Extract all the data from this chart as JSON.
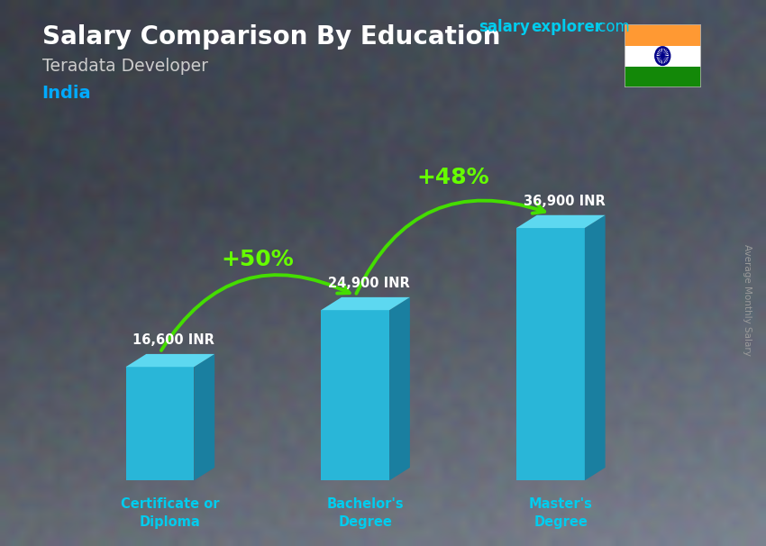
{
  "title_salary": "Salary Comparison By Education",
  "subtitle_job": "Teradata Developer",
  "subtitle_country": "India",
  "categories": [
    "Certificate or\nDiploma",
    "Bachelor's\nDegree",
    "Master's\nDegree"
  ],
  "values": [
    16600,
    24900,
    36900
  ],
  "value_labels": [
    "16,600 INR",
    "24,900 INR",
    "36,900 INR"
  ],
  "pct_labels": [
    "+50%",
    "+48%"
  ],
  "bar_front_color": "#29b6d8",
  "bar_top_color": "#5dd8f0",
  "bar_side_color": "#1a7fa0",
  "title_color": "#ffffff",
  "subtitle_job_color": "#cccccc",
  "subtitle_country_color": "#00aaff",
  "category_label_color": "#00ccee",
  "value_label_color": "#ffffff",
  "pct_color": "#66ff00",
  "arrow_color": "#44dd00",
  "watermark_color": "#00ccee",
  "ylabel_text": "Average Monthly Salary",
  "ylabel_color": "#999999",
  "fig_width": 8.5,
  "fig_height": 6.06,
  "bg_color": "#5a6370"
}
